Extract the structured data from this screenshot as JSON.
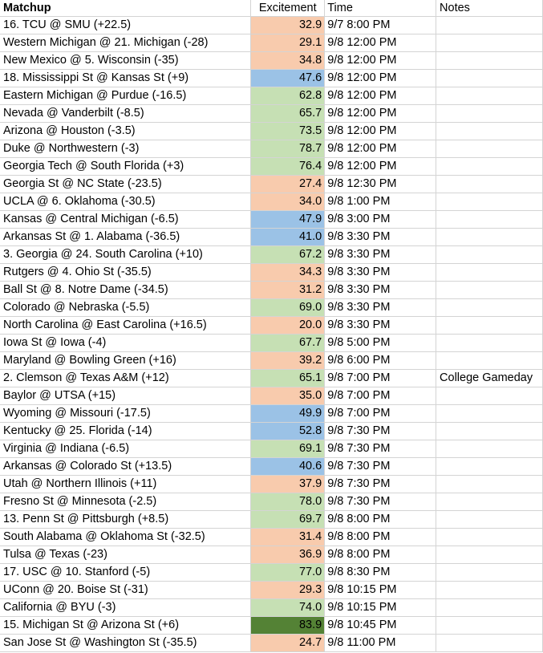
{
  "headers": {
    "matchup": "Matchup",
    "excitement": "Excitement",
    "time": "Time",
    "notes": "Notes"
  },
  "colors": {
    "low": "#f8cbad",
    "mid": "#9bc2e6",
    "high": "#c6e0b4",
    "top": "#548235"
  },
  "rows": [
    {
      "matchup": "16. TCU @ SMU (+22.5)",
      "excitement": "32.9",
      "time": "9/7 8:00 PM",
      "notes": "",
      "band": "low"
    },
    {
      "matchup": "Western Michigan @ 21. Michigan (-28)",
      "excitement": "29.1",
      "time": "9/8 12:00 PM",
      "notes": "",
      "band": "low"
    },
    {
      "matchup": "New Mexico @ 5. Wisconsin (-35)",
      "excitement": "34.8",
      "time": "9/8 12:00 PM",
      "notes": "",
      "band": "low"
    },
    {
      "matchup": "18. Mississippi St @ Kansas St (+9)",
      "excitement": "47.6",
      "time": "9/8 12:00 PM",
      "notes": "",
      "band": "mid"
    },
    {
      "matchup": "Eastern Michigan @ Purdue (-16.5)",
      "excitement": "62.8",
      "time": "9/8 12:00 PM",
      "notes": "",
      "band": "high"
    },
    {
      "matchup": "Nevada @ Vanderbilt (-8.5)",
      "excitement": "65.7",
      "time": "9/8 12:00 PM",
      "notes": "",
      "band": "high"
    },
    {
      "matchup": "Arizona @ Houston (-3.5)",
      "excitement": "73.5",
      "time": "9/8 12:00 PM",
      "notes": "",
      "band": "high"
    },
    {
      "matchup": "Duke @ Northwestern (-3)",
      "excitement": "78.7",
      "time": "9/8 12:00 PM",
      "notes": "",
      "band": "high"
    },
    {
      "matchup": "Georgia Tech @ South Florida (+3)",
      "excitement": "76.4",
      "time": "9/8 12:00 PM",
      "notes": "",
      "band": "high"
    },
    {
      "matchup": "Georgia St @ NC State (-23.5)",
      "excitement": "27.4",
      "time": "9/8 12:30 PM",
      "notes": "",
      "band": "low"
    },
    {
      "matchup": "UCLA @ 6. Oklahoma (-30.5)",
      "excitement": "34.0",
      "time": "9/8 1:00 PM",
      "notes": "",
      "band": "low"
    },
    {
      "matchup": "Kansas @ Central Michigan (-6.5)",
      "excitement": "47.9",
      "time": "9/8 3:00 PM",
      "notes": "",
      "band": "mid"
    },
    {
      "matchup": "Arkansas St @ 1. Alabama (-36.5)",
      "excitement": "41.0",
      "time": "9/8 3:30 PM",
      "notes": "",
      "band": "mid"
    },
    {
      "matchup": "3. Georgia @ 24. South Carolina (+10)",
      "excitement": "67.2",
      "time": "9/8 3:30 PM",
      "notes": "",
      "band": "high"
    },
    {
      "matchup": "Rutgers @ 4. Ohio St (-35.5)",
      "excitement": "34.3",
      "time": "9/8 3:30 PM",
      "notes": "",
      "band": "low"
    },
    {
      "matchup": "Ball St @ 8. Notre Dame (-34.5)",
      "excitement": "31.2",
      "time": "9/8 3:30 PM",
      "notes": "",
      "band": "low"
    },
    {
      "matchup": "Colorado @ Nebraska (-5.5)",
      "excitement": "69.0",
      "time": "9/8 3:30 PM",
      "notes": "",
      "band": "high"
    },
    {
      "matchup": "North Carolina @ East Carolina (+16.5)",
      "excitement": "20.0",
      "time": "9/8 3:30 PM",
      "notes": "",
      "band": "low"
    },
    {
      "matchup": "Iowa St @ Iowa (-4)",
      "excitement": "67.7",
      "time": "9/8 5:00 PM",
      "notes": "",
      "band": "high"
    },
    {
      "matchup": "Maryland @ Bowling Green (+16)",
      "excitement": "39.2",
      "time": "9/8 6:00 PM",
      "notes": "",
      "band": "low"
    },
    {
      "matchup": "2. Clemson @ Texas A&M (+12)",
      "excitement": "65.1",
      "time": "9/8 7:00 PM",
      "notes": "College Gameday",
      "band": "high"
    },
    {
      "matchup": "Baylor @ UTSA (+15)",
      "excitement": "35.0",
      "time": "9/8 7:00 PM",
      "notes": "",
      "band": "low"
    },
    {
      "matchup": "Wyoming @ Missouri (-17.5)",
      "excitement": "49.9",
      "time": "9/8 7:00 PM",
      "notes": "",
      "band": "mid"
    },
    {
      "matchup": "Kentucky @ 25. Florida (-14)",
      "excitement": "52.8",
      "time": "9/8 7:30 PM",
      "notes": "",
      "band": "mid"
    },
    {
      "matchup": "Virginia @ Indiana (-6.5)",
      "excitement": "69.1",
      "time": "9/8 7:30 PM",
      "notes": "",
      "band": "high"
    },
    {
      "matchup": "Arkansas @ Colorado St (+13.5)",
      "excitement": "40.6",
      "time": "9/8 7:30 PM",
      "notes": "",
      "band": "mid"
    },
    {
      "matchup": "Utah @ Northern Illinois (+11)",
      "excitement": "37.9",
      "time": "9/8 7:30 PM",
      "notes": "",
      "band": "low"
    },
    {
      "matchup": "Fresno St @ Minnesota (-2.5)",
      "excitement": "78.0",
      "time": "9/8 7:30 PM",
      "notes": "",
      "band": "high"
    },
    {
      "matchup": "13. Penn St @ Pittsburgh (+8.5)",
      "excitement": "69.7",
      "time": "9/8 8:00 PM",
      "notes": "",
      "band": "high"
    },
    {
      "matchup": "South Alabama @ Oklahoma St (-32.5)",
      "excitement": "31.4",
      "time": "9/8 8:00 PM",
      "notes": "",
      "band": "low"
    },
    {
      "matchup": "Tulsa @ Texas (-23)",
      "excitement": "36.9",
      "time": "9/8 8:00 PM",
      "notes": "",
      "band": "low"
    },
    {
      "matchup": "17. USC @ 10. Stanford (-5)",
      "excitement": "77.0",
      "time": "9/8 8:30 PM",
      "notes": "",
      "band": "high"
    },
    {
      "matchup": "UConn @ 20. Boise St (-31)",
      "excitement": "29.3",
      "time": "9/8 10:15 PM",
      "notes": "",
      "band": "low"
    },
    {
      "matchup": "California @ BYU (-3)",
      "excitement": "74.0",
      "time": "9/8 10:15 PM",
      "notes": "",
      "band": "high"
    },
    {
      "matchup": "15. Michigan St @ Arizona St (+6)",
      "excitement": "83.9",
      "time": "9/8 10:45 PM",
      "notes": "",
      "band": "top"
    },
    {
      "matchup": "San Jose St @ Washington St (-35.5)",
      "excitement": "24.7",
      "time": "9/8 11:00 PM",
      "notes": "",
      "band": "low"
    }
  ]
}
